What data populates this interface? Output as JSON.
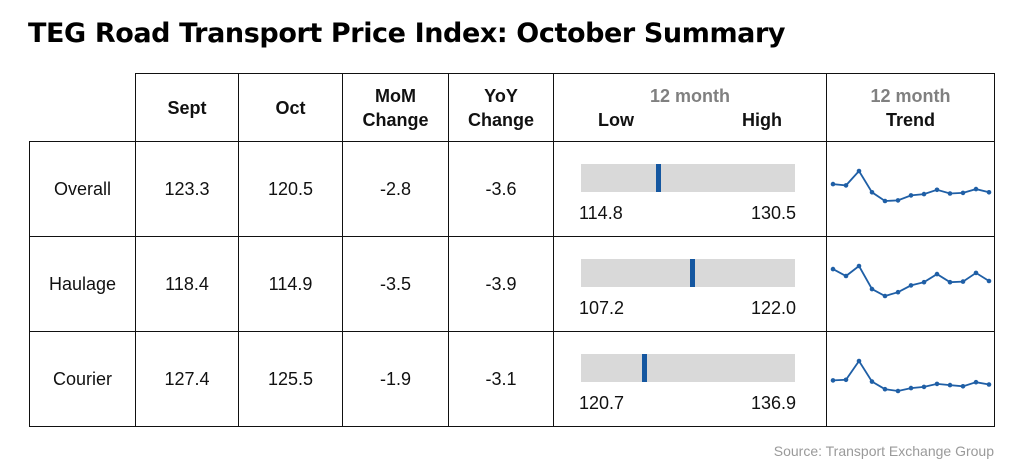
{
  "title": "TEG Road Transport Price Index: October Summary",
  "source": "Source: Transport Exchange Group",
  "headers": {
    "sept": "Sept",
    "oct": "Oct",
    "mom_line1": "MoM",
    "mom_line2": "Change",
    "yoy_line1": "YoY",
    "yoy_line2": "Change",
    "range_top": "12 month",
    "range_low": "Low",
    "range_high": "High",
    "trend_top": "12 month",
    "trend_bottom": "Trend"
  },
  "colors": {
    "marker": "#1557a0",
    "sparkline": "#1f5fa6",
    "bar": "#d9d9d9",
    "muted": "#808080"
  },
  "chart_data": {
    "type": "table",
    "title": "TEG Road Transport Price Index: October Summary",
    "columns": [
      "Sept",
      "Oct",
      "MoM Change",
      "YoY Change",
      "12 month Low",
      "12 month High",
      "12 month Trend"
    ],
    "rows": [
      {
        "label": "Overall",
        "sept": "123.3",
        "oct": "120.5",
        "mom": "-2.8",
        "yoy": "-3.6",
        "low": "114.8",
        "high": "130.5",
        "current": 120.5,
        "trend": [
          124.1,
          123.9,
          126.2,
          122.8,
          121.4,
          121.5,
          122.3,
          122.5,
          123.2,
          122.6,
          122.7,
          123.3,
          122.8
        ]
      },
      {
        "label": "Haulage",
        "sept": "118.4",
        "oct": "114.9",
        "mom": "-3.5",
        "yoy": "-3.9",
        "low": "107.2",
        "high": "122.0",
        "current": 114.9,
        "trend": [
          119.1,
          118.0,
          119.6,
          115.9,
          114.8,
          115.4,
          116.5,
          117.0,
          118.3,
          117.0,
          117.1,
          118.5,
          117.2
        ]
      },
      {
        "label": "Courier",
        "sept": "127.4",
        "oct": "125.5",
        "mom": "-1.9",
        "yoy": "-3.1",
        "low": "120.7",
        "high": "136.9",
        "current": 125.5,
        "trend": [
          128.1,
          128.2,
          131.4,
          127.9,
          126.6,
          126.3,
          126.8,
          127.0,
          127.5,
          127.3,
          127.1,
          127.8,
          127.4
        ]
      }
    ]
  }
}
